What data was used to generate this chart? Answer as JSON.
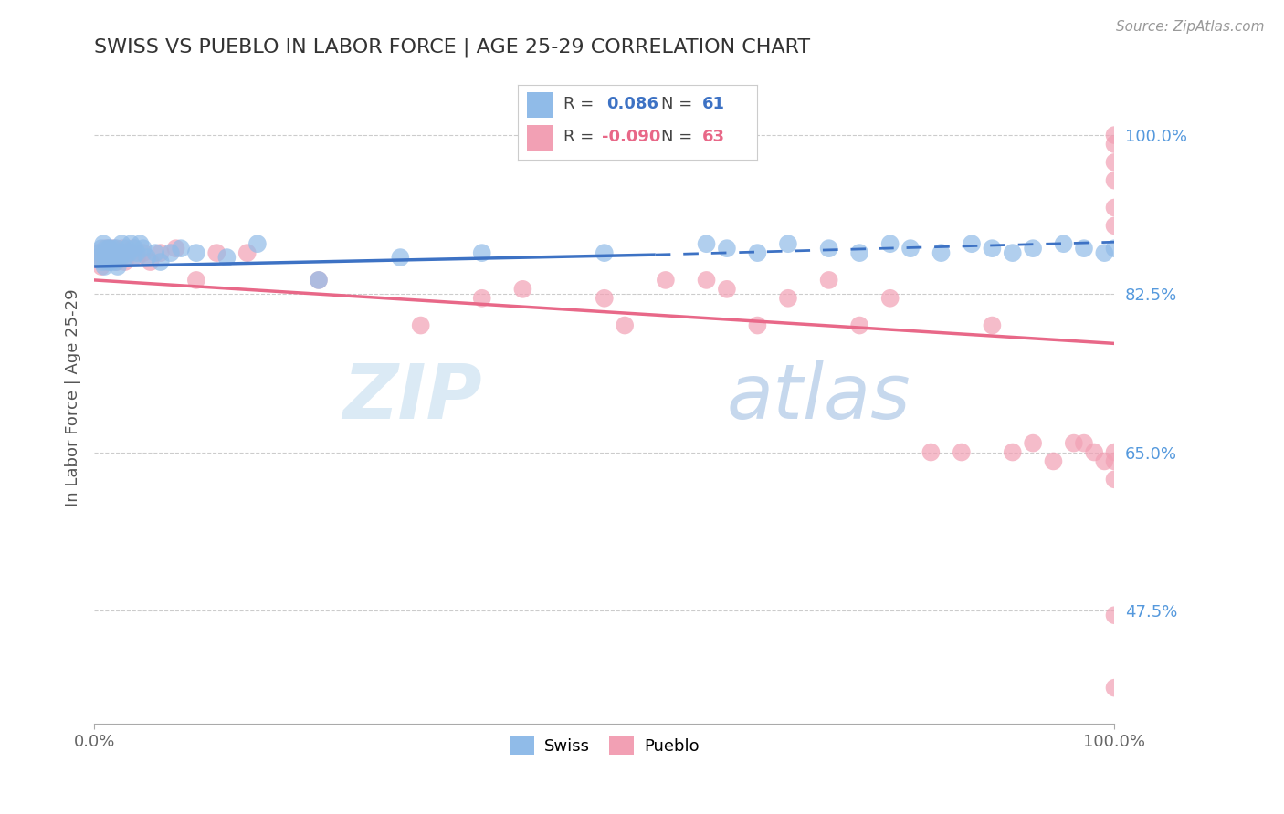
{
  "title": "SWISS VS PUEBLO IN LABOR FORCE | AGE 25-29 CORRELATION CHART",
  "ylabel": "In Labor Force | Age 25-29",
  "source": "Source: ZipAtlas.com",
  "watermark_zip": "ZIP",
  "watermark_atlas": "atlas",
  "xlim": [
    0.0,
    1.0
  ],
  "ylim": [
    0.35,
    1.07
  ],
  "yticks": [
    0.475,
    0.65,
    0.825,
    1.0
  ],
  "ytick_labels": [
    "47.5%",
    "65.0%",
    "82.5%",
    "100.0%"
  ],
  "xtick_labels": [
    "0.0%",
    "100.0%"
  ],
  "swiss_R": "0.086",
  "swiss_N": "61",
  "pueblo_R": "-0.090",
  "pueblo_N": "63",
  "swiss_color": "#90BBE8",
  "pueblo_color": "#F2A0B4",
  "swiss_line_color": "#3D72C4",
  "pueblo_line_color": "#E86888",
  "grid_color": "#CCCCCC",
  "bg_color": "#FFFFFF",
  "legend_R_color": "#3D72C4",
  "legend_R2_color": "#E86888",
  "swiss_x": [
    0.003,
    0.006,
    0.007,
    0.008,
    0.009,
    0.01,
    0.011,
    0.012,
    0.013,
    0.014,
    0.015,
    0.016,
    0.017,
    0.018,
    0.019,
    0.02,
    0.021,
    0.022,
    0.023,
    0.025,
    0.026,
    0.027,
    0.028,
    0.03,
    0.032,
    0.034,
    0.036,
    0.038,
    0.04,
    0.042,
    0.045,
    0.048,
    0.052,
    0.06,
    0.065,
    0.075,
    0.085,
    0.1,
    0.13,
    0.16,
    0.22,
    0.3,
    0.38,
    0.5,
    0.6,
    0.62,
    0.65,
    0.68,
    0.72,
    0.75,
    0.78,
    0.8,
    0.83,
    0.86,
    0.88,
    0.9,
    0.92,
    0.95,
    0.97,
    0.99,
    1.0
  ],
  "swiss_y": [
    0.865,
    0.87,
    0.875,
    0.86,
    0.88,
    0.855,
    0.87,
    0.865,
    0.875,
    0.86,
    0.875,
    0.87,
    0.86,
    0.875,
    0.865,
    0.87,
    0.86,
    0.875,
    0.855,
    0.87,
    0.865,
    0.88,
    0.87,
    0.865,
    0.875,
    0.87,
    0.88,
    0.865,
    0.875,
    0.87,
    0.88,
    0.875,
    0.865,
    0.87,
    0.86,
    0.87,
    0.875,
    0.87,
    0.865,
    0.88,
    0.84,
    0.865,
    0.87,
    0.87,
    0.88,
    0.875,
    0.87,
    0.88,
    0.875,
    0.87,
    0.88,
    0.875,
    0.87,
    0.88,
    0.875,
    0.87,
    0.875,
    0.88,
    0.875,
    0.87,
    0.875
  ],
  "pueblo_x": [
    0.003,
    0.005,
    0.007,
    0.009,
    0.01,
    0.011,
    0.012,
    0.014,
    0.015,
    0.016,
    0.018,
    0.02,
    0.022,
    0.024,
    0.026,
    0.028,
    0.03,
    0.032,
    0.035,
    0.038,
    0.042,
    0.048,
    0.055,
    0.065,
    0.08,
    0.1,
    0.12,
    0.15,
    0.22,
    0.32,
    0.38,
    0.42,
    0.5,
    0.52,
    0.56,
    0.6,
    0.62,
    0.65,
    0.68,
    0.72,
    0.75,
    0.78,
    0.82,
    0.85,
    0.88,
    0.9,
    0.92,
    0.94,
    0.96,
    0.97,
    0.98,
    0.99,
    1.0,
    1.0,
    1.0,
    1.0,
    1.0,
    1.0,
    1.0,
    1.0,
    1.0,
    1.0,
    1.0
  ],
  "pueblo_y": [
    0.87,
    0.865,
    0.855,
    0.87,
    0.865,
    0.875,
    0.86,
    0.87,
    0.875,
    0.865,
    0.87,
    0.875,
    0.86,
    0.87,
    0.865,
    0.875,
    0.86,
    0.87,
    0.87,
    0.875,
    0.865,
    0.87,
    0.86,
    0.87,
    0.875,
    0.84,
    0.87,
    0.87,
    0.84,
    0.79,
    0.82,
    0.83,
    0.82,
    0.79,
    0.84,
    0.84,
    0.83,
    0.79,
    0.82,
    0.84,
    0.79,
    0.82,
    0.65,
    0.65,
    0.79,
    0.65,
    0.66,
    0.64,
    0.66,
    0.66,
    0.65,
    0.64,
    1.0,
    0.99,
    0.97,
    0.95,
    0.92,
    0.9,
    0.64,
    0.65,
    0.62,
    0.47,
    0.39
  ],
  "swiss_line_x0": 0.0,
  "swiss_line_x_solid_end": 0.55,
  "swiss_line_x1": 1.0,
  "swiss_line_y0": 0.855,
  "swiss_line_y_solid_end": 0.868,
  "swiss_line_y1": 0.882,
  "pueblo_line_x0": 0.0,
  "pueblo_line_x1": 1.0,
  "pueblo_line_y0": 0.84,
  "pueblo_line_y1": 0.77
}
